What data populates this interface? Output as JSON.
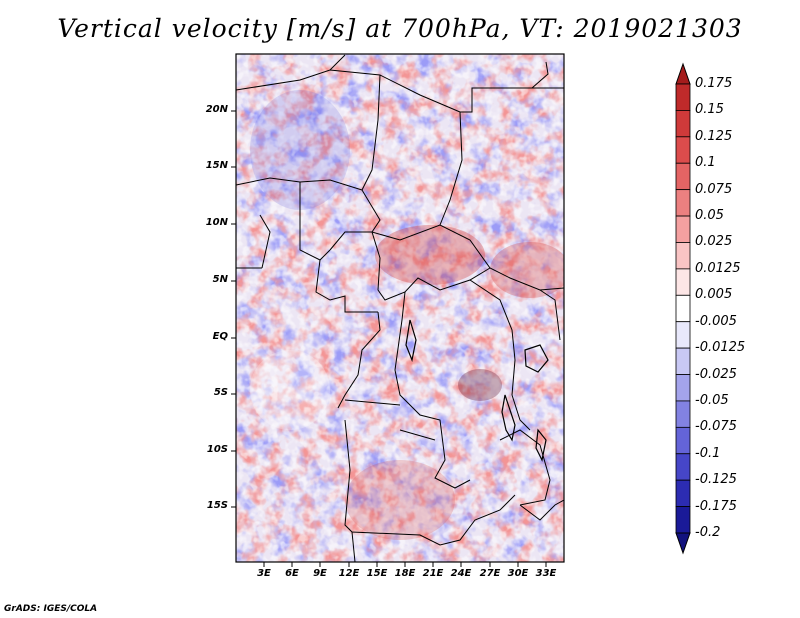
{
  "title": "Vertical velocity [m/s] at 700hPa, VT: 2019021303",
  "footer": "GrADS: IGES/COLA",
  "lat_labels": [
    "20N",
    "15N",
    "10N",
    "5N",
    "EQ",
    "5S",
    "10S",
    "15S"
  ],
  "lon_labels": [
    "3E",
    "6E",
    "9E",
    "12E",
    "15E",
    "18E",
    "21E",
    "24E",
    "27E",
    "30E",
    "33E"
  ],
  "colorbar": {
    "labels": [
      "0.175",
      "0.15",
      "0.125",
      "0.1",
      "0.075",
      "0.05",
      "0.025",
      "0.0125",
      "0.005",
      "-0.005",
      "-0.0125",
      "-0.025",
      "-0.05",
      "-0.075",
      "-0.1",
      "-0.125",
      "-0.175",
      "-0.2"
    ],
    "colors": [
      "#a51c1c",
      "#bf2a2a",
      "#cf3a3a",
      "#dc4c4c",
      "#e46464",
      "#ec8080",
      "#f4a0a0",
      "#f9c4c4",
      "#fde6e6",
      "#ffffff",
      "#e8e8fb",
      "#c8c8f4",
      "#a4a4ec",
      "#8282e2",
      "#6464d8",
      "#4646c8",
      "#2c2cb2",
      "#1a1a98",
      "#12127e"
    ]
  }
}
